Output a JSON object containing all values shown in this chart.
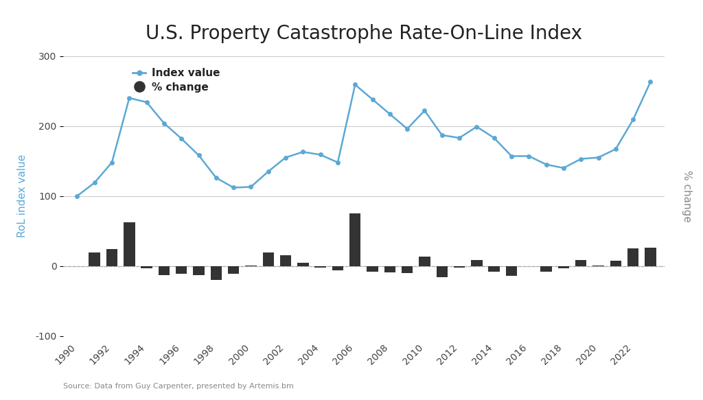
{
  "title": "U.S. Property Catastrophe Rate-On-Line Index",
  "source": "Source: Data from Guy Carpenter, presented by Artemis.bm",
  "years": [
    1990,
    1991,
    1992,
    1993,
    1994,
    1995,
    1996,
    1997,
    1998,
    1999,
    2000,
    2001,
    2002,
    2003,
    2004,
    2005,
    2006,
    2007,
    2008,
    2009,
    2010,
    2011,
    2012,
    2013,
    2014,
    2015,
    2016,
    2017,
    2018,
    2019,
    2020,
    2021,
    2022,
    2023
  ],
  "index_values": [
    100,
    119,
    148,
    240,
    234,
    204,
    182,
    158,
    126,
    112,
    113,
    135,
    155,
    163,
    159,
    148,
    259,
    238,
    217,
    196,
    222,
    187,
    183,
    199,
    183,
    157,
    157,
    145,
    140,
    153,
    155,
    167,
    209,
    263
  ],
  "pct_change": [
    null,
    19,
    24,
    62,
    -3,
    -13,
    -11,
    -13,
    -20,
    -11,
    1,
    19,
    15,
    5,
    -2,
    -6,
    75,
    -8,
    -9,
    -10,
    13,
    -16,
    -2,
    9,
    -8,
    -14,
    0,
    -8,
    -3,
    9,
    1,
    8,
    25,
    26
  ],
  "line_color": "#5ba8d4",
  "bar_color": "#333333",
  "background_color": "#ffffff",
  "ylabel_left": "RoL index value",
  "ylabel_right": "% change",
  "ylim": [
    -100,
    300
  ],
  "yticks": [
    -100,
    0,
    100,
    200,
    300
  ],
  "grid_color": "#cccccc",
  "legend_labels": [
    "Index value",
    "% change"
  ],
  "title_fontsize": 20,
  "label_fontsize": 11,
  "tick_fontsize": 10,
  "source_fontsize": 8
}
